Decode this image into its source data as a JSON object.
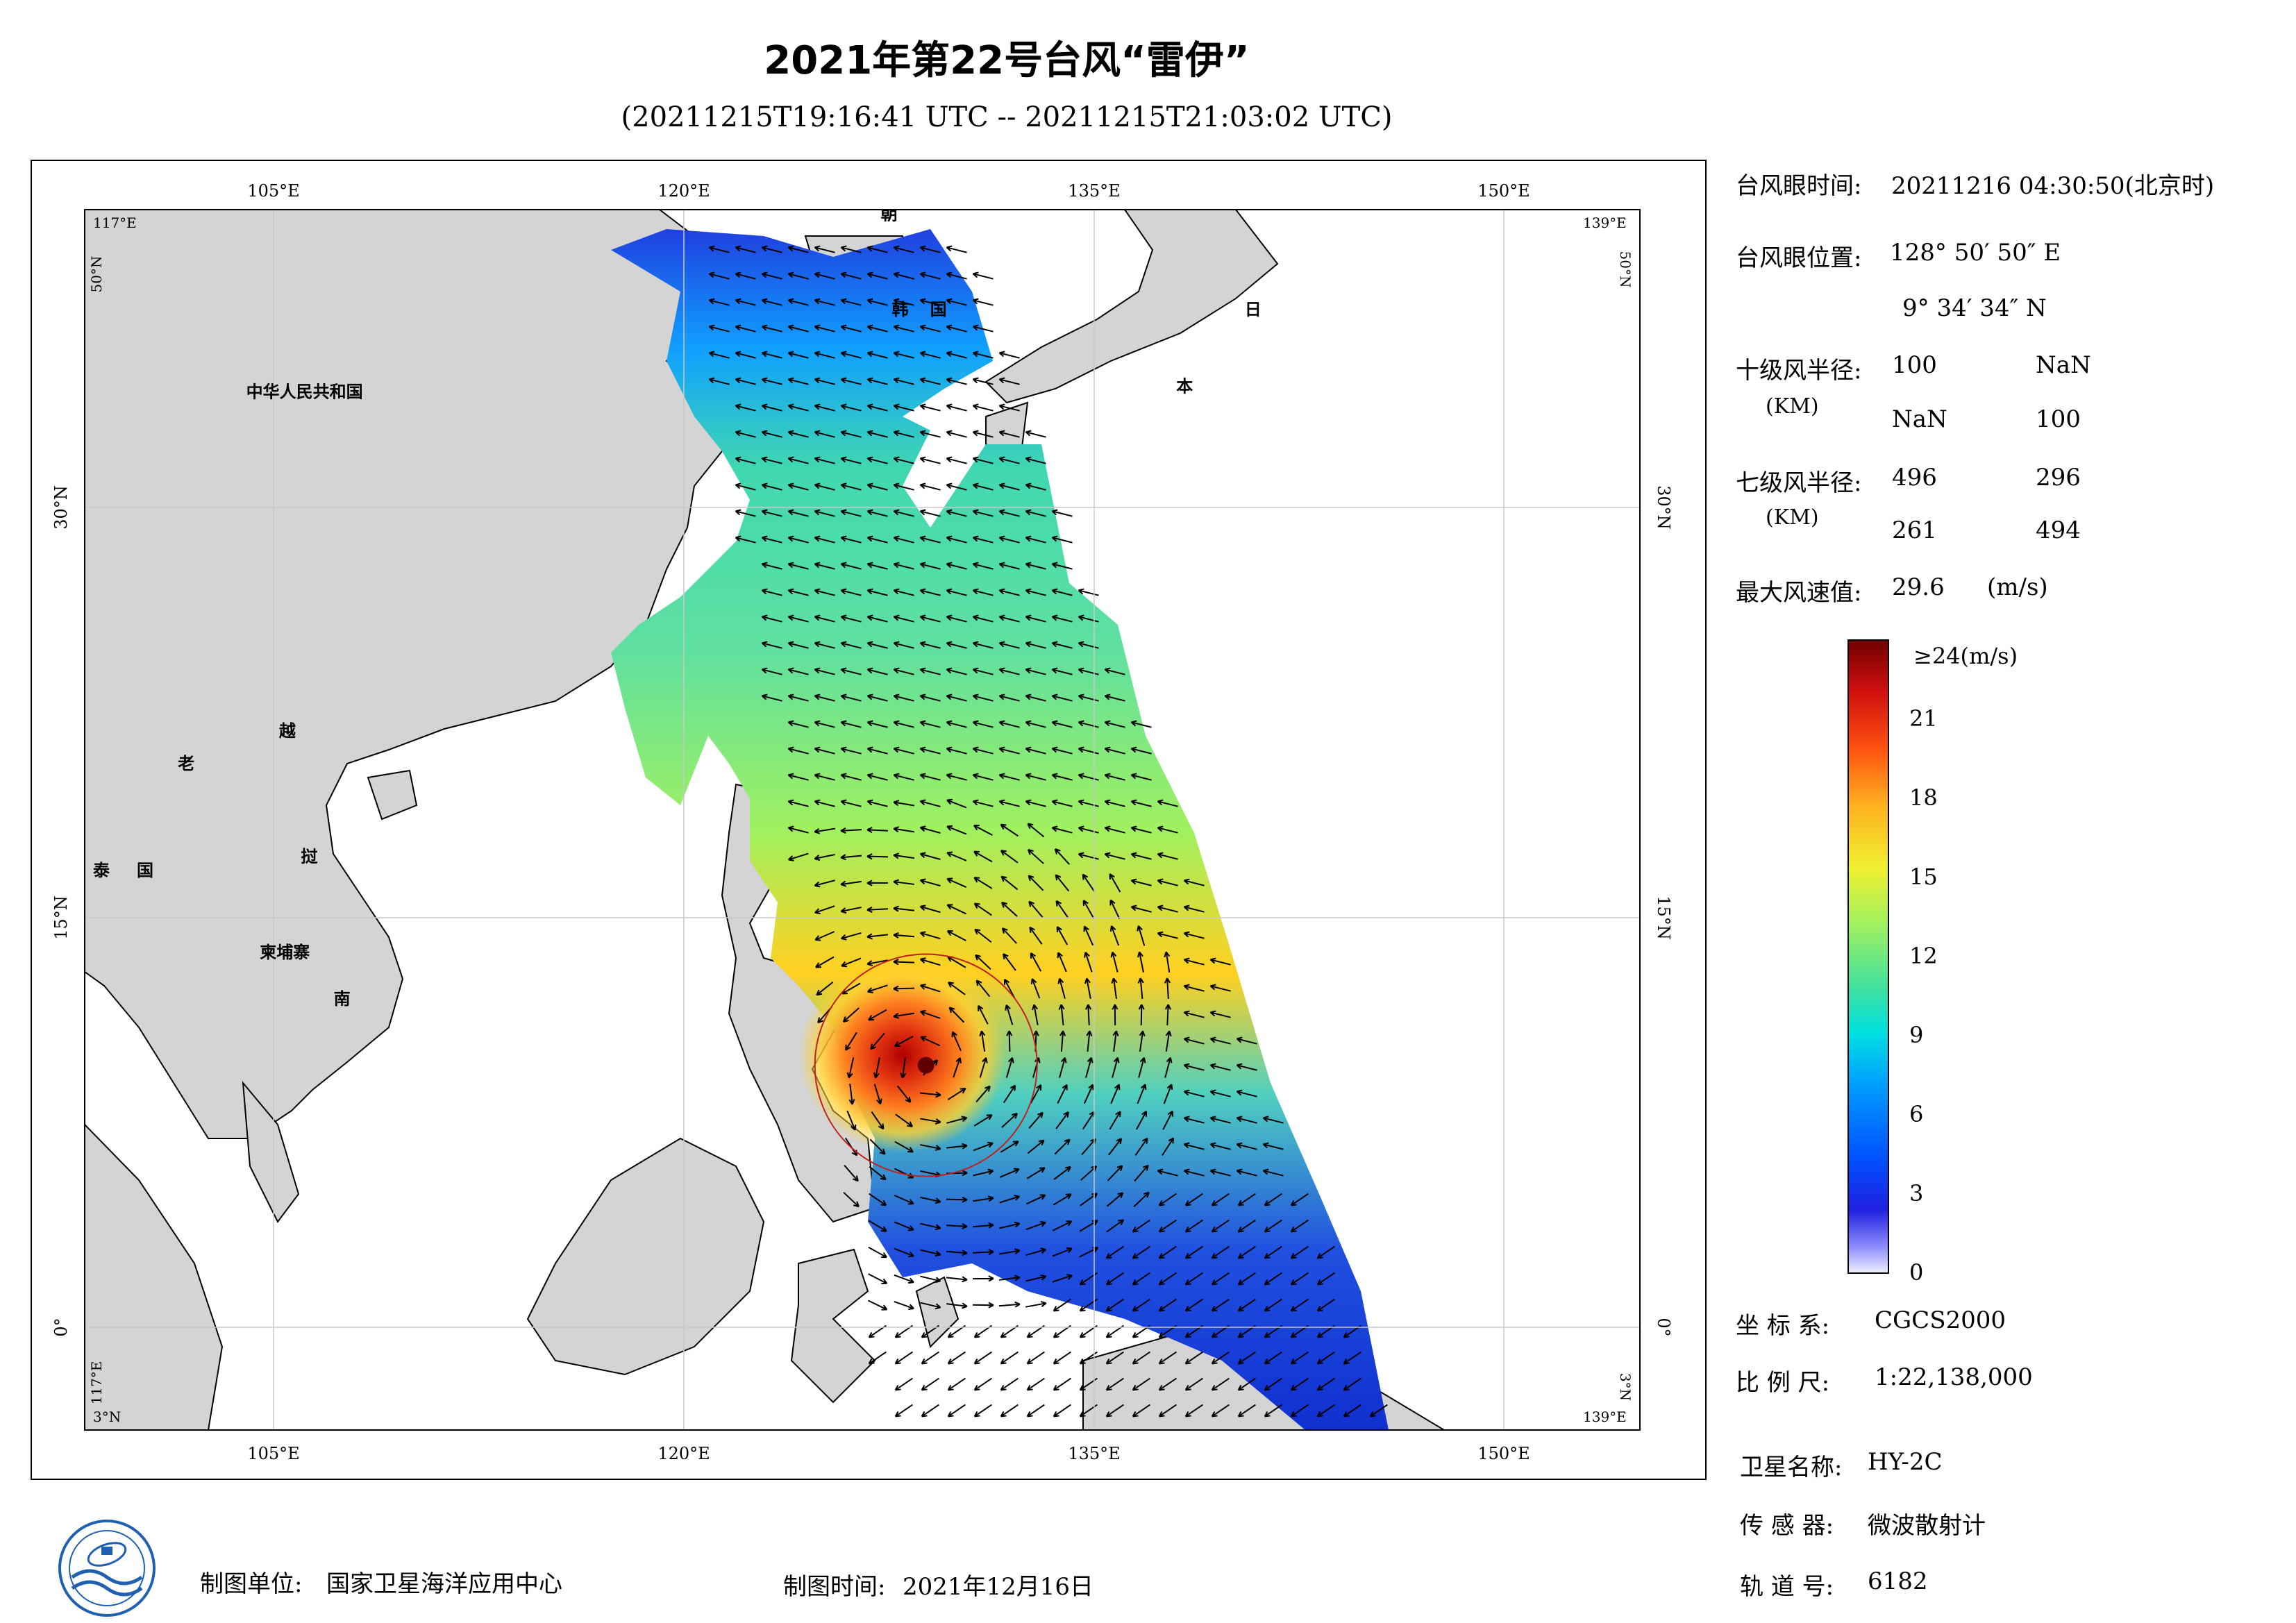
{
  "title": "2021年第22号台风“雷伊”",
  "subtitle": "(20211215T19:16:41 UTC -- 20211215T21:03:02 UTC)",
  "map": {
    "lon_ticks": [
      "105°E",
      "120°E",
      "135°E",
      "150°E"
    ],
    "lat_ticks": [
      "30°N",
      "15°N",
      "0°"
    ],
    "lat_ticks_right": [
      "30°N",
      "15°N",
      "0°"
    ],
    "corner_labels": {
      "top_left": "117°E",
      "top_left_lat": "50°N",
      "top_right": "139°E",
      "top_right_lat": "50°N",
      "bottom_left": "3°N",
      "bottom_left_lon": "117°E",
      "bottom_right": "139°E",
      "bottom_right_lat": "3°N"
    },
    "country_labels": [
      {
        "text": "中华人民共和国",
        "lon": 104,
        "lat": 34
      },
      {
        "text": "朝",
        "lon": 127.2,
        "lat": 40.5
      },
      {
        "text": "韩",
        "lon": 127.6,
        "lat": 37.0
      },
      {
        "text": "国",
        "lon": 129.0,
        "lat": 37.0
      },
      {
        "text": "日",
        "lon": 140.5,
        "lat": 37.0
      },
      {
        "text": "本",
        "lon": 138.0,
        "lat": 34.2
      },
      {
        "text": "老",
        "lon": 101.5,
        "lat": 20.4
      },
      {
        "text": "越",
        "lon": 105.2,
        "lat": 21.6
      },
      {
        "text": "挝",
        "lon": 106.0,
        "lat": 17.0
      },
      {
        "text": "泰",
        "lon": 98.4,
        "lat": 16.5
      },
      {
        "text": "国",
        "lon": 100.0,
        "lat": 16.5
      },
      {
        "text": "柬埔寨",
        "lon": 104.5,
        "lat": 13.5
      },
      {
        "text": "南",
        "lon": 107.2,
        "lat": 11.8
      }
    ],
    "typhoon_center": {
      "lon": 128.85,
      "lat": 9.58
    }
  },
  "info": {
    "eye_time_label": "台风眼时间:",
    "eye_time_value": "20211216 04:30:50(北京时)",
    "eye_pos_label": "台风眼位置:",
    "eye_pos_lon": "128° 50′ 50″ E",
    "eye_pos_lat": "9° 34′ 34″ N",
    "r10_label": "十级风半径:",
    "r10_unit": "(KM)",
    "r10_values": [
      "100",
      "NaN",
      "NaN",
      "100"
    ],
    "r7_label": "七级风半径:",
    "r7_unit": "(KM)",
    "r7_values": [
      "496",
      "296",
      "261",
      "494"
    ],
    "max_wind_label": "最大风速值:",
    "max_wind_value": "29.6",
    "max_wind_unit": "(m/s)",
    "coord_label": "坐 标 系:",
    "coord_value": "CGCS2000",
    "scale_label": "比 例 尺:",
    "scale_value": "1:22,138,000",
    "sat_label": "卫星名称:",
    "sat_value": "HY-2C",
    "sensor_label": "传 感 器:",
    "sensor_value": "微波散射计",
    "orbit_label": "轨 道 号:",
    "orbit_value": "6182"
  },
  "colorbar": {
    "top_label": "≥24(m/s)",
    "ticks": [
      "21",
      "18",
      "15",
      "12",
      "9",
      "6",
      "3",
      "0"
    ],
    "tick_values": [
      21,
      18,
      15,
      12,
      9,
      6,
      3,
      0
    ],
    "max": 24,
    "colors": [
      "#f0f0ff",
      "#9090ff",
      "#2020e0",
      "#0050ff",
      "#00a0ff",
      "#00e0e0",
      "#40e0a0",
      "#a0f060",
      "#f0f030",
      "#ffb020",
      "#ff5010",
      "#d01010",
      "#700000"
    ]
  },
  "footer": {
    "maker_label": "制图单位:",
    "maker_value": "国家卫星海洋应用中心",
    "date_label": "制图时间:",
    "date_value": "2021年12月16日"
  }
}
